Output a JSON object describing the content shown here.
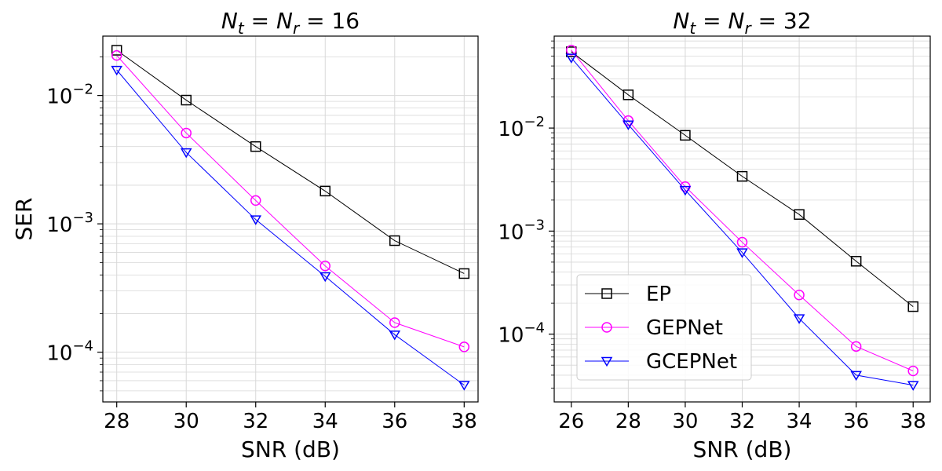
{
  "chart_data": [
    {
      "type": "line",
      "title": "N_t = N_r = 16",
      "title_parts": {
        "a": "N",
        "a_sub": "t",
        "mid": " = ",
        "b": "N",
        "b_sub": "r",
        "value": " = 16"
      },
      "xlabel": "SNR (dB)",
      "ylabel": "SER",
      "yscale": "log",
      "xlim": [
        27.6,
        38.4
      ],
      "ylim": [
        4.1e-05,
        0.029
      ],
      "xticks": [
        28,
        30,
        32,
        34,
        36,
        38
      ],
      "yticks": [
        {
          "value": 0.0001,
          "base": "10",
          "exp": "−4"
        },
        {
          "value": 0.001,
          "base": "10",
          "exp": "−3"
        },
        {
          "value": 0.01,
          "base": "10",
          "exp": "−2"
        }
      ],
      "grid": true,
      "x": [
        28,
        30,
        32,
        34,
        36,
        38
      ],
      "series": [
        {
          "name": "EP",
          "color": "#000000",
          "marker": "square",
          "values": [
            0.0225,
            0.0092,
            0.004,
            0.0018,
            0.00074,
            0.00041
          ]
        },
        {
          "name": "GEPNet",
          "color": "#ff00ff",
          "marker": "circle",
          "values": [
            0.0205,
            0.0051,
            0.00152,
            0.00047,
            0.00017,
            0.00011
          ]
        },
        {
          "name": "GCEPNet",
          "color": "#0000ff",
          "marker": "triangle-down",
          "values": [
            0.0158,
            0.0036,
            0.00108,
            0.00039,
            0.000137,
            5.55e-05
          ]
        }
      ]
    },
    {
      "type": "line",
      "title": "N_t = N_r = 32",
      "title_parts": {
        "a": "N",
        "a_sub": "t",
        "mid": " = ",
        "b": "N",
        "b_sub": "r",
        "value": " = 32"
      },
      "xlabel": "SNR (dB)",
      "ylabel": "",
      "yscale": "log",
      "xlim": [
        25.4,
        38.6
      ],
      "ylim": [
        2.2e-05,
        0.078
      ],
      "xticks": [
        26,
        28,
        30,
        32,
        34,
        36,
        38
      ],
      "yticks": [
        {
          "value": 0.0001,
          "base": "10",
          "exp": "−4"
        },
        {
          "value": 0.001,
          "base": "10",
          "exp": "−3"
        },
        {
          "value": 0.01,
          "base": "10",
          "exp": "−2"
        }
      ],
      "grid": true,
      "legend": {
        "placement": "lower-left",
        "entries": [
          "EP",
          "GEPNet",
          "GCEPNet"
        ]
      },
      "x": [
        26,
        28,
        30,
        32,
        34,
        36,
        38
      ],
      "series": [
        {
          "name": "EP",
          "color": "#000000",
          "marker": "square",
          "values": [
            0.055,
            0.021,
            0.0085,
            0.0034,
            0.00145,
            0.00051,
            0.000185
          ]
        },
        {
          "name": "GEPNet",
          "color": "#ff00ff",
          "marker": "circle",
          "values": [
            0.057,
            0.0118,
            0.0027,
            0.00078,
            0.00024,
            7.6e-05,
            4.4e-05
          ]
        },
        {
          "name": "GCEPNet",
          "color": "#0000ff",
          "marker": "triangle-down",
          "values": [
            0.048,
            0.0108,
            0.0025,
            0.00062,
            0.000142,
            4e-05,
            3.2e-05
          ]
        }
      ]
    }
  ]
}
